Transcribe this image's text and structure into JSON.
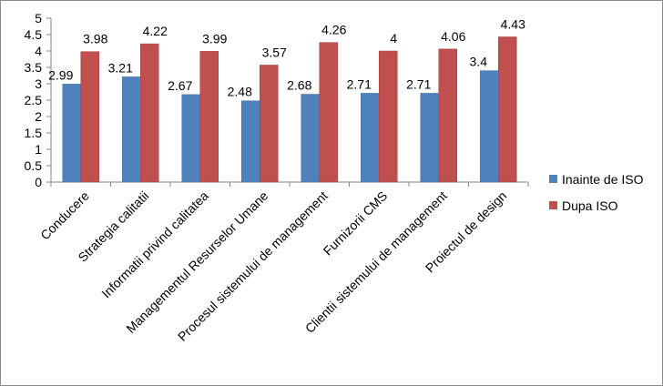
{
  "chart_data": {
    "type": "bar",
    "title": "",
    "xlabel": "",
    "ylabel": "",
    "categories": [
      "Conducere",
      "Strategia calitatii",
      "Informatii privind calitatea",
      "Managementul Resurselor Umane",
      "Procesul sistemului de management",
      "Furnizorii CMS",
      "Clientii sistemului de management",
      "Proiectul de design"
    ],
    "series": [
      {
        "name": "Inainte de ISO",
        "color": "#4F81BD",
        "values": [
          2.99,
          3.21,
          2.67,
          2.48,
          2.68,
          2.71,
          2.71,
          3.4
        ],
        "labels": [
          "2.99",
          "3.21",
          "2.67",
          "2.48",
          "2.68",
          "2.71",
          "2.71",
          "3.4"
        ]
      },
      {
        "name": "Dupa ISO",
        "color": "#C0504D",
        "values": [
          3.98,
          4.22,
          3.99,
          3.57,
          4.26,
          4,
          4.06,
          4.43
        ],
        "labels": [
          "3.98",
          "4.22",
          "3.99",
          "3.57",
          "4.26",
          "4",
          "4.06",
          "4.43"
        ]
      }
    ],
    "ylim": [
      0,
      5
    ],
    "yticks": [
      "0",
      "0.5",
      "1",
      "1.5",
      "2",
      "2.5",
      "3",
      "3.5",
      "4",
      "4.5",
      "5"
    ],
    "grid": false,
    "legend": "right"
  }
}
